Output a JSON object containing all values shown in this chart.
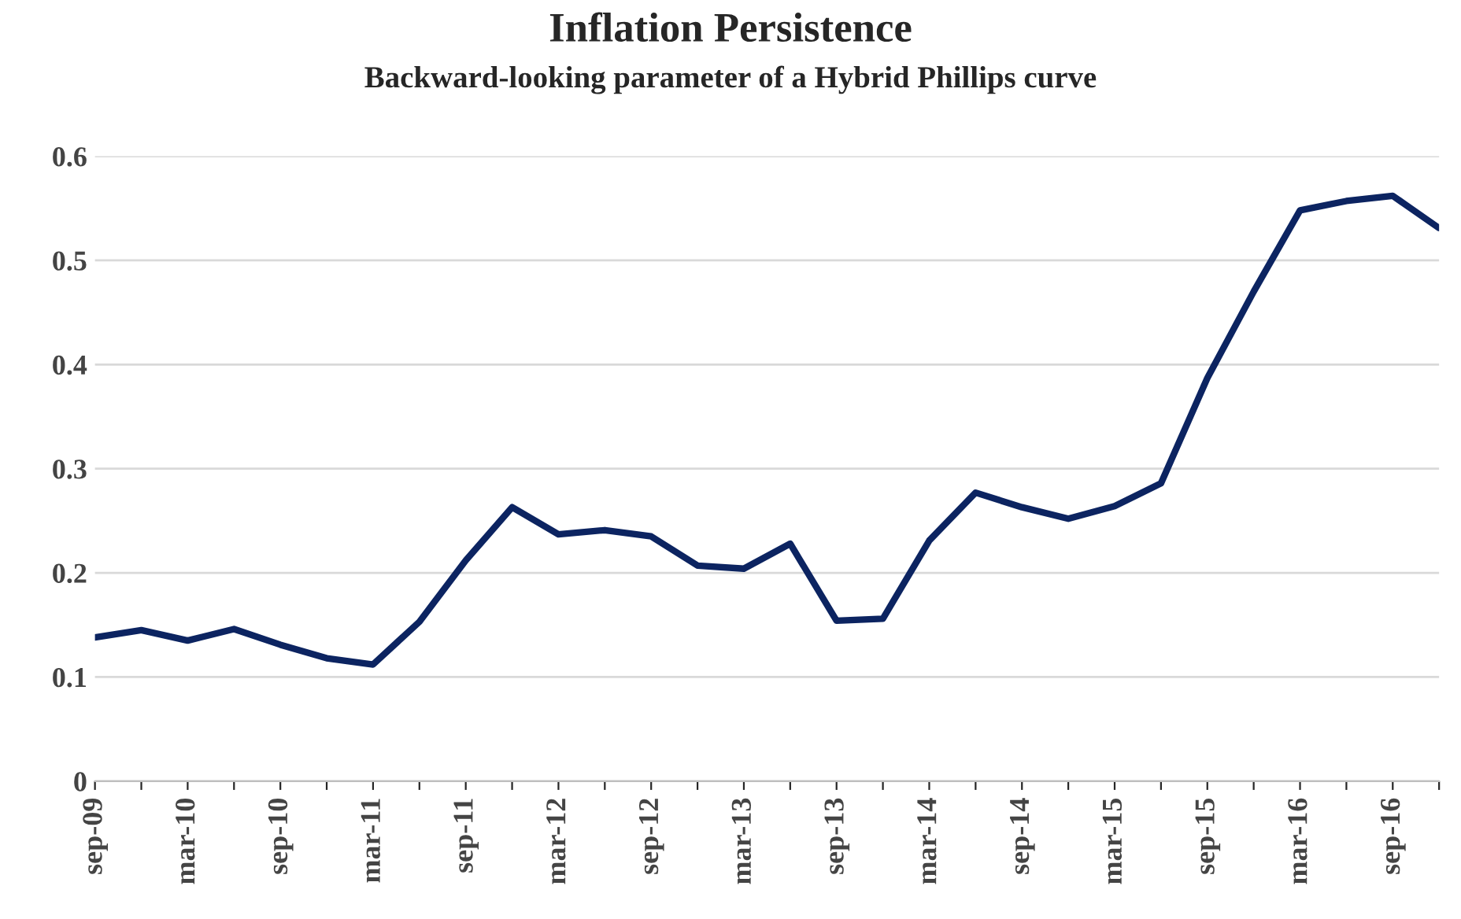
{
  "chart_data": {
    "type": "line",
    "title": "Inflation Persistence",
    "subtitle": "Backward-looking parameter of a Hybrid Phillips curve",
    "categories": [
      "sep-09",
      null,
      "mar-10",
      null,
      "sep-10",
      null,
      "mar-11",
      null,
      "sep-11",
      null,
      "mar-12",
      null,
      "sep-12",
      null,
      "mar-13",
      null,
      "sep-13",
      null,
      "mar-14",
      null,
      "sep-14",
      null,
      "mar-15",
      null,
      "sep-15",
      null,
      "mar-16",
      null,
      "sep-16",
      null
    ],
    "series": [
      {
        "color": "#0c2461",
        "values": [
          0.138,
          0.145,
          0.135,
          0.146,
          0.131,
          0.118,
          0.112,
          0.153,
          0.212,
          0.263,
          0.237,
          0.241,
          0.235,
          0.207,
          0.204,
          0.228,
          0.154,
          0.156,
          0.231,
          0.277,
          0.263,
          0.252,
          0.264,
          0.286,
          0.387,
          0.47,
          0.548,
          0.557,
          0.562,
          0.531
        ]
      }
    ],
    "ylim": [
      0,
      0.6
    ],
    "yticks": [
      0,
      0.1,
      0.2,
      0.3,
      0.4,
      0.5,
      0.6
    ],
    "grid": "y",
    "legend": false,
    "marker": "none",
    "line_style": "solid"
  }
}
